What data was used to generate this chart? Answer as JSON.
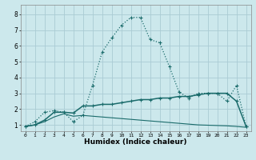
{
  "xlabel": "Humidex (Indice chaleur)",
  "bg_color": "#cce8ec",
  "grid_color": "#aaccd4",
  "line_color": "#1a6b6b",
  "x_ticks": [
    0,
    1,
    2,
    3,
    4,
    5,
    6,
    7,
    8,
    9,
    10,
    11,
    12,
    13,
    14,
    15,
    16,
    17,
    18,
    19,
    20,
    21,
    22,
    23
  ],
  "y_ticks": [
    1,
    2,
    3,
    4,
    5,
    6,
    7,
    8
  ],
  "ylim": [
    0.6,
    8.6
  ],
  "xlim": [
    -0.5,
    23.5
  ],
  "line1_x": [
    0,
    1,
    2,
    3,
    4,
    5,
    6,
    7,
    8,
    9,
    10,
    11,
    12,
    13,
    14,
    15,
    16,
    17,
    18,
    19,
    20,
    21,
    22,
    23
  ],
  "line1_y": [
    0.9,
    1.2,
    1.8,
    1.9,
    1.8,
    1.2,
    1.6,
    3.5,
    5.6,
    6.5,
    7.3,
    7.8,
    7.8,
    6.4,
    6.2,
    4.7,
    3.1,
    2.7,
    3.0,
    3.0,
    3.0,
    2.5,
    3.5,
    0.9
  ],
  "line2_x": [
    0,
    1,
    2,
    3,
    4,
    5,
    6,
    7,
    8,
    9,
    10,
    11,
    12,
    13,
    14,
    15,
    16,
    17,
    18,
    19,
    20,
    21,
    22,
    23
  ],
  "line2_y": [
    0.9,
    1.0,
    1.3,
    1.8,
    1.8,
    1.75,
    2.2,
    2.2,
    2.3,
    2.3,
    2.4,
    2.5,
    2.6,
    2.6,
    2.7,
    2.7,
    2.8,
    2.8,
    2.9,
    3.0,
    3.0,
    3.0,
    2.5,
    0.9
  ],
  "line3_x": [
    0,
    1,
    2,
    3,
    4,
    5,
    6,
    7,
    8,
    9,
    10,
    11,
    12,
    13,
    14,
    15,
    16,
    17,
    18,
    19,
    20,
    21,
    22,
    23
  ],
  "line3_y": [
    0.9,
    1.0,
    1.2,
    1.5,
    1.7,
    1.55,
    1.6,
    1.55,
    1.5,
    1.45,
    1.4,
    1.35,
    1.3,
    1.25,
    1.2,
    1.15,
    1.1,
    1.05,
    1.0,
    0.98,
    0.96,
    0.94,
    0.9,
    0.85
  ]
}
